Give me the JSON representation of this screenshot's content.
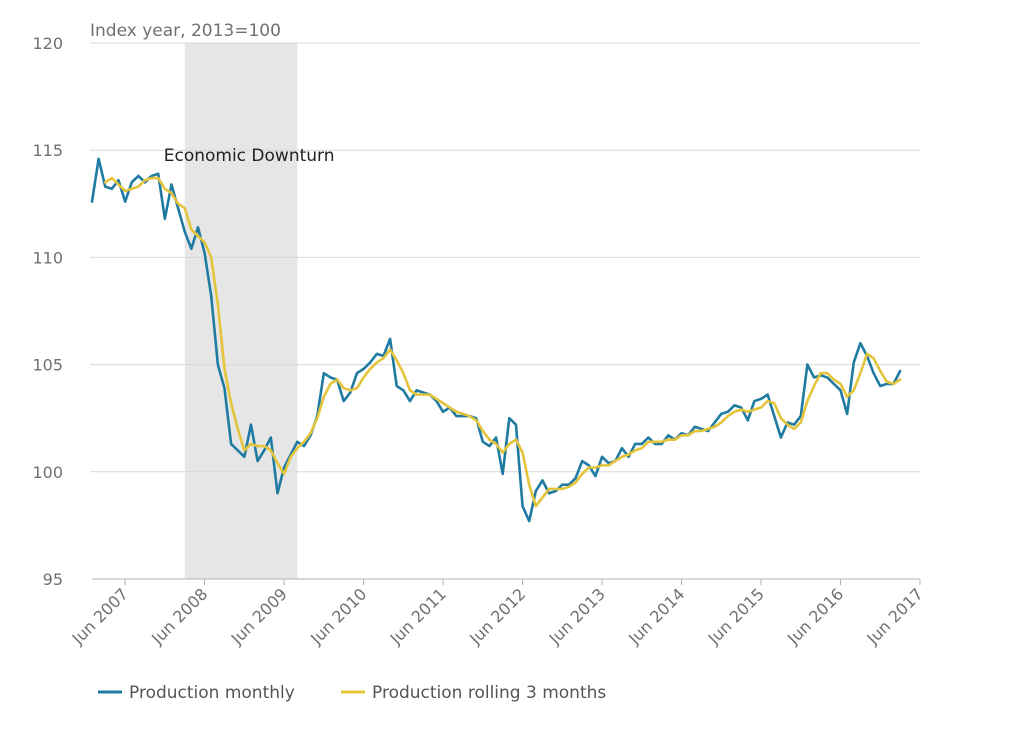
{
  "chart_data": {
    "type": "line",
    "ylabel": "Index year, 2013=100",
    "ylim": [
      95,
      120
    ],
    "yticks": [
      95,
      100,
      105,
      110,
      115,
      120
    ],
    "xticks": [
      "Jun 2007",
      "Jun 2008",
      "Jun 2009",
      "Jun 2010",
      "Jun 2011",
      "Jun 2012",
      "Jun 2013",
      "Jun 2014",
      "Jun 2015",
      "Jun 2016",
      "Jun 2017"
    ],
    "x_start": "2007-01",
    "x_end": "2017-06",
    "grid": true,
    "legend_position": "bottom-left",
    "annotations": [
      {
        "label": "Economic Downturn",
        "from": "2008-03",
        "to": "2009-08"
      }
    ],
    "series": [
      {
        "name": "Production monthly",
        "color": "#1f7ba1",
        "values": [
          112.6,
          114.6,
          113.3,
          113.2,
          113.6,
          112.6,
          113.5,
          113.8,
          113.5,
          113.8,
          113.9,
          111.8,
          113.4,
          112.3,
          111.2,
          110.4,
          111.4,
          110.2,
          108.2,
          105.0,
          103.9,
          101.3,
          101.0,
          100.7,
          102.2,
          100.5,
          101.0,
          101.6,
          99.0,
          100.2,
          100.8,
          101.4,
          101.2,
          101.7,
          102.6,
          104.6,
          104.4,
          104.3,
          103.3,
          103.7,
          104.6,
          104.8,
          105.1,
          105.5,
          105.4,
          106.2,
          104.0,
          103.8,
          103.3,
          103.8,
          103.7,
          103.6,
          103.3,
          102.8,
          103.0,
          102.6,
          102.6,
          102.6,
          102.5,
          101.4,
          101.2,
          101.6,
          99.9,
          102.5,
          102.2,
          98.4,
          97.7,
          99.1,
          99.6,
          99.0,
          99.1,
          99.4,
          99.4,
          99.7,
          100.5,
          100.3,
          99.8,
          100.7,
          100.4,
          100.5,
          101.1,
          100.7,
          101.3,
          101.3,
          101.6,
          101.3,
          101.3,
          101.7,
          101.5,
          101.8,
          101.7,
          102.1,
          102.0,
          101.9,
          102.3,
          102.7,
          102.8,
          103.1,
          103.0,
          102.4,
          103.3,
          103.4,
          103.6,
          102.6,
          101.6,
          102.3,
          102.2,
          102.6,
          105.0,
          104.4,
          104.5,
          104.4,
          104.1,
          103.8,
          102.7,
          105.1,
          106.0,
          105.4,
          104.6,
          104.0,
          104.1,
          104.1,
          104.7
        ]
      },
      {
        "name": "Production rolling 3 months",
        "color": "#e3c43a",
        "values": [
          null,
          null,
          113.5,
          113.7,
          113.4,
          113.1,
          113.2,
          113.3,
          113.6,
          113.7,
          113.7,
          113.2,
          113.0,
          112.5,
          112.3,
          111.3,
          111.0,
          110.7,
          110.0,
          107.8,
          104.8,
          103.2,
          102.0,
          101.0,
          101.3,
          101.2,
          101.2,
          101.0,
          100.4,
          99.9,
          100.7,
          101.1,
          101.4,
          101.8,
          102.5,
          103.5,
          104.1,
          104.3,
          103.9,
          103.8,
          103.9,
          104.4,
          104.8,
          105.1,
          105.3,
          105.7,
          105.2,
          104.6,
          103.8,
          103.6,
          103.6,
          103.6,
          103.4,
          103.2,
          103.0,
          102.8,
          102.7,
          102.6,
          102.4,
          101.9,
          101.5,
          101.3,
          100.9,
          101.3,
          101.5,
          100.9,
          99.4,
          98.4,
          98.8,
          99.2,
          99.2,
          99.2,
          99.3,
          99.5,
          99.9,
          100.2,
          100.2,
          100.3,
          100.3,
          100.5,
          100.7,
          100.8,
          101.0,
          101.1,
          101.4,
          101.4,
          101.4,
          101.5,
          101.5,
          101.7,
          101.7,
          101.9,
          101.9,
          102.0,
          102.1,
          102.3,
          102.6,
          102.8,
          102.9,
          102.8,
          102.9,
          103.0,
          103.3,
          103.2,
          102.5,
          102.2,
          102.0,
          102.3,
          103.3,
          104.0,
          104.6,
          104.6,
          104.3,
          104.1,
          103.5,
          103.8,
          104.6,
          105.5,
          105.3,
          104.7,
          104.2,
          104.1,
          104.3
        ]
      }
    ]
  }
}
